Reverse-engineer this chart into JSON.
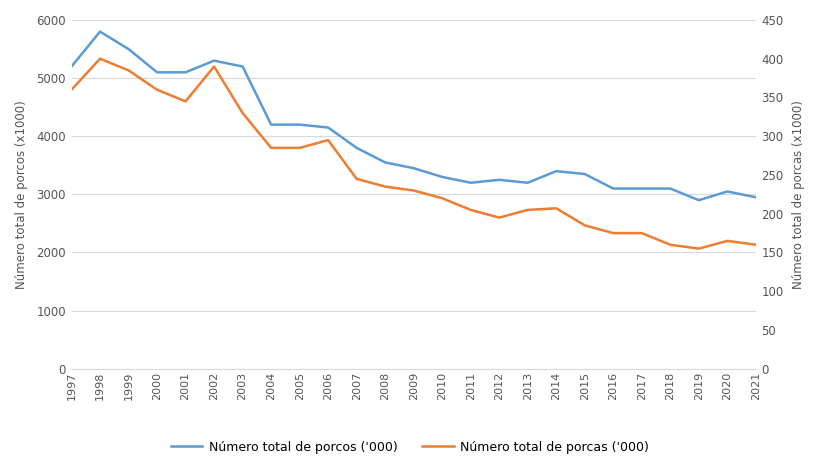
{
  "years": [
    1997,
    1998,
    1999,
    2000,
    2001,
    2002,
    2003,
    2004,
    2005,
    2006,
    2007,
    2008,
    2009,
    2010,
    2011,
    2012,
    2013,
    2014,
    2015,
    2016,
    2017,
    2018,
    2019,
    2020,
    2021
  ],
  "porcos": [
    5200,
    5800,
    5500,
    5100,
    5100,
    5300,
    5200,
    4200,
    4200,
    4150,
    3800,
    3550,
    3450,
    3300,
    3200,
    3250,
    3200,
    3400,
    3350,
    3100,
    3100,
    3100,
    2900,
    3050,
    2950
  ],
  "porcas": [
    360,
    400,
    385,
    360,
    345,
    390,
    330,
    285,
    285,
    295,
    245,
    235,
    230,
    220,
    205,
    195,
    205,
    207,
    185,
    175,
    175,
    160,
    155,
    165,
    160
  ],
  "porcos_color": "#5B9BD5",
  "porcas_color": "#ED7D31",
  "ylabel_left": "Número total de porcos (x1000)",
  "ylabel_right": "Número total de porcas (x1000)",
  "ylim_left": [
    0,
    6000
  ],
  "ylim_right": [
    0,
    450
  ],
  "yticks_left": [
    0,
    1000,
    2000,
    3000,
    4000,
    5000,
    6000
  ],
  "yticks_right": [
    0,
    50,
    100,
    150,
    200,
    250,
    300,
    350,
    400,
    450
  ],
  "legend_porcos": "Número total de porcos ('000)",
  "legend_porcas": "Número total de porcas ('000)",
  "grid_color": "#D9D9D9",
  "background_color": "#FFFFFF",
  "line_width": 1.8,
  "figwidth": 8.2,
  "figheight": 4.61,
  "dpi": 100
}
